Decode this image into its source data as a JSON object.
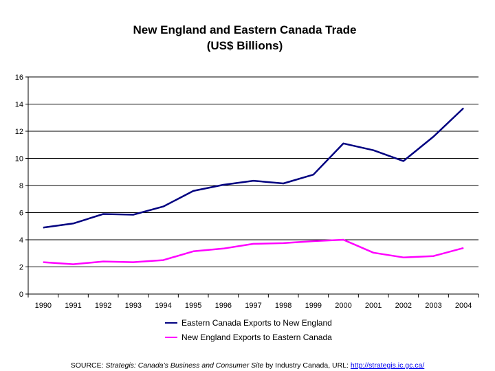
{
  "chart_data": {
    "type": "line",
    "title": "New England and Eastern Canada Trade",
    "subtitle": "(US$ Billions)",
    "categories": [
      "1990",
      "1991",
      "1992",
      "1993",
      "1994",
      "1995",
      "1996",
      "1997",
      "1998",
      "1999",
      "2000",
      "2001",
      "2002",
      "2003",
      "2004"
    ],
    "series": [
      {
        "name": "Eastern Canada Exports to New England",
        "color": "#000080",
        "values": [
          4.9,
          5.2,
          5.9,
          5.85,
          6.45,
          7.6,
          8.05,
          8.35,
          8.15,
          8.8,
          11.1,
          10.6,
          9.8,
          11.6,
          13.7
        ]
      },
      {
        "name": "New England Exports to Eastern Canada",
        "color": "#ff00ff",
        "values": [
          2.35,
          2.2,
          2.4,
          2.35,
          2.5,
          3.15,
          3.35,
          3.7,
          3.75,
          3.9,
          4.0,
          3.05,
          2.7,
          2.8,
          3.4
        ]
      }
    ],
    "yticks": [
      "0",
      "2",
      "4",
      "6",
      "8",
      "10",
      "12",
      "14",
      "16"
    ],
    "ylim": [
      0,
      16
    ],
    "grid": true,
    "legend_position": "bottom"
  },
  "source": {
    "prefix": "SOURCE: ",
    "italic": "Strategis: Canada’s Business and Consumer Site",
    "middle": " by Industry Canada, URL: ",
    "link": "http://strategis.ic.gc.ca/"
  }
}
